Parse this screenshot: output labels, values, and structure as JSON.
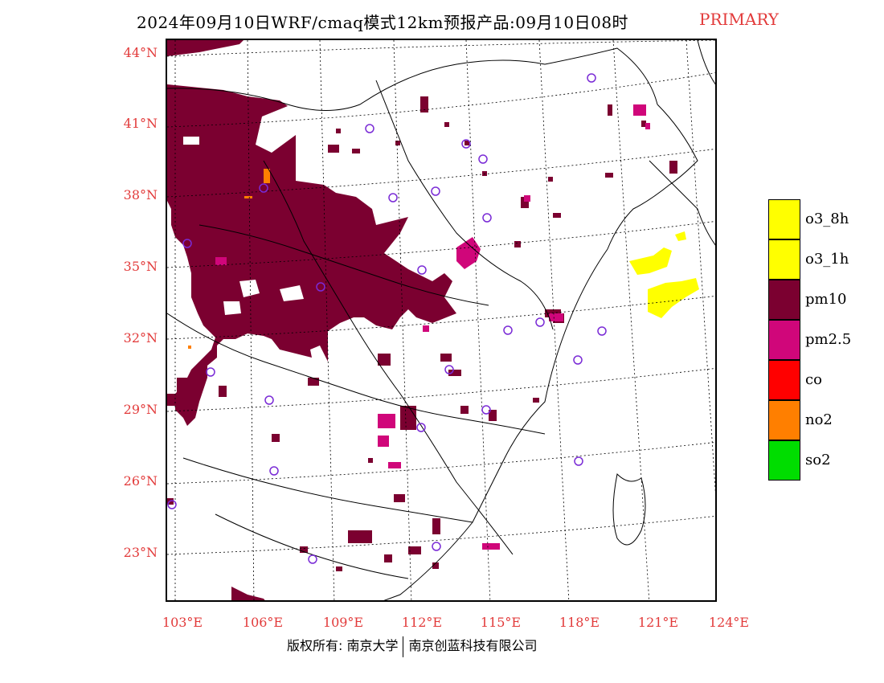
{
  "header": {
    "title": "2024年09月10日WRF/cmaq模式12km预报产品:09月10日08时",
    "status_label": "PRIMARY"
  },
  "map": {
    "latitude_labels": [
      "44°N",
      "41°N",
      "38°N",
      "35°N",
      "32°N",
      "29°N",
      "26°N",
      "23°N"
    ],
    "longitude_labels": [
      "103°E",
      "106°E",
      "109°E",
      "112°E",
      "115°E",
      "118°E",
      "121°E",
      "124°E"
    ]
  },
  "legend": {
    "items": [
      {
        "label": "o3_8h",
        "color": "#ffff00"
      },
      {
        "label": "o3_1h",
        "color": "#ffff00"
      },
      {
        "label": "pm10",
        "color": "#7b0030"
      },
      {
        "label": "pm2.5",
        "color": "#d0067a"
      },
      {
        "label": "co",
        "color": "#ff0000"
      },
      {
        "label": "no2",
        "color": "#ff7f00"
      },
      {
        "label": "so2",
        "color": "#00dd00"
      }
    ]
  },
  "footer": {
    "copyright": "版权所有: 南京大学",
    "company": "南京创蓝科技有限公司"
  },
  "colors": {
    "pm10": "#7b0030",
    "pm25": "#d0067a",
    "o3": "#ffff00",
    "no2": "#ff7f00",
    "station_marker": "#7a2bd6",
    "axis_label": "#e23a3a"
  }
}
